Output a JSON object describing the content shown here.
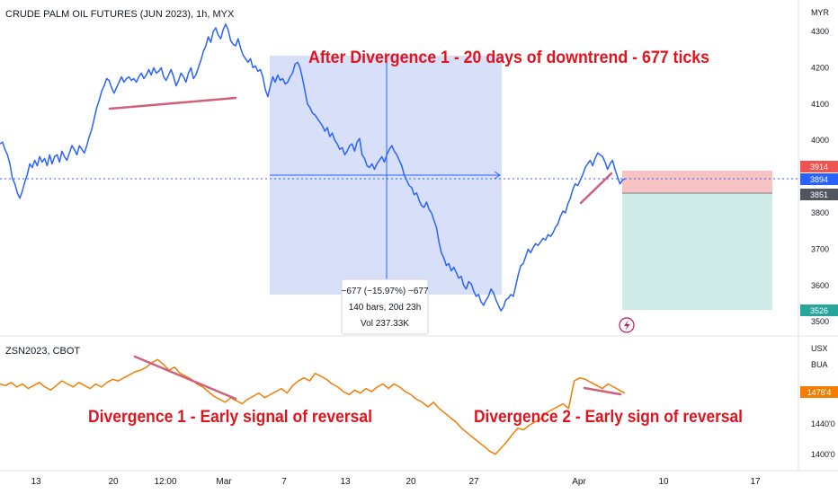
{
  "chart_data": [
    {
      "type": "line",
      "title": "CRUDE PALM OIL FUTURES (JUN 2023), 1h, MYX",
      "currency_label": "MYR",
      "y_ticks": [
        "4300",
        "4200",
        "4100",
        "4000",
        "3800",
        "3700",
        "3600",
        "3500"
      ],
      "ylim": [
        3490,
        4350
      ],
      "price_tags": [
        "3914",
        "3894",
        "3851",
        "3526"
      ],
      "series": [
        {
          "values": [
            3990,
            3995,
            3975,
            3960,
            3935,
            3895,
            3880,
            3855,
            3840,
            3860,
            3885,
            3905,
            3935,
            3925,
            3945,
            3930,
            3955,
            3940,
            3950,
            3930,
            3960,
            3935,
            3955,
            3960,
            3940,
            3970,
            3955,
            3945,
            3965,
            3985,
            3975,
            3960,
            3985,
            3975,
            3965,
            3985,
            4010,
            4030,
            4060,
            4090,
            4110,
            4135,
            4150,
            4170,
            4165,
            4145,
            4130,
            4145,
            4160,
            4175,
            4160,
            4170,
            4175,
            4165,
            4170,
            4160,
            4175,
            4185,
            4170,
            4180,
            4195,
            4180,
            4200,
            4185,
            4190,
            4200,
            4175,
            4165,
            4180,
            4195,
            4175,
            4150,
            4165,
            4185,
            4175,
            4160,
            4185,
            4200,
            4170,
            4180,
            4200,
            4220,
            4245,
            4260,
            4285,
            4270,
            4300,
            4310,
            4290,
            4280,
            4305,
            4320,
            4305,
            4275,
            4265,
            4260,
            4280,
            4255,
            4235,
            4225,
            4215,
            4225,
            4200,
            4205,
            4190,
            4195,
            4175,
            4140,
            4120,
            4150,
            4175,
            4160,
            4180,
            4165,
            4170,
            4155,
            4160,
            4175,
            4185,
            4210,
            4215,
            4200,
            4170,
            4135,
            4100,
            4090,
            4075,
            4070,
            4060,
            4050,
            4040,
            4025,
            4035,
            4010,
            4020,
            4000,
            3990,
            3975,
            3980,
            3960,
            3970,
            3985,
            3990,
            3970,
            3995,
            4005,
            3960,
            3950,
            3930,
            3925,
            3935,
            3920,
            3935,
            3945,
            3955,
            3940,
            3960,
            3975,
            3985,
            3970,
            3960,
            3945,
            3930,
            3905,
            3890,
            3875,
            3870,
            3850,
            3855,
            3835,
            3820,
            3815,
            3830,
            3810,
            3800,
            3780,
            3760,
            3720,
            3690,
            3675,
            3655,
            3660,
            3640,
            3650,
            3635,
            3620,
            3625,
            3600,
            3590,
            3610,
            3605,
            3585,
            3570,
            3575,
            3555,
            3545,
            3560,
            3570,
            3590,
            3580,
            3560,
            3545,
            3530,
            3540,
            3560,
            3565,
            3575,
            3570,
            3600,
            3630,
            3655,
            3660,
            3680,
            3700,
            3690,
            3705,
            3715,
            3710,
            3720,
            3730,
            3725,
            3740,
            3735,
            3745,
            3760,
            3770,
            3790,
            3805,
            3800,
            3825,
            3840,
            3865,
            3880,
            3875,
            3890,
            3905,
            3925,
            3935,
            3945,
            3930,
            3950,
            3965,
            3960,
            3955,
            3940,
            3920,
            3935,
            3945,
            3920,
            3900,
            3880,
            3890,
            3894
          ],
          "color": "#2962ff"
        }
      ],
      "annotations": {
        "heading": "After Divergence 1 - 20 days of downtrend - 677 ticks",
        "measure_line1": "−677 (−15.97%) −677",
        "measure_line2": "140 bars, 20d 23h",
        "measure_line3": "Vol 237.33K"
      }
    },
    {
      "type": "line",
      "title": "ZSN2023, CBOT",
      "currency_label": "USX",
      "unit_label": "BUA",
      "y_ticks": [
        "1440'0",
        "1400'0"
      ],
      "price_tag": "1478'4",
      "series": [
        {
          "values": [
            1490,
            1488,
            1492,
            1486,
            1490,
            1484,
            1488,
            1492,
            1486,
            1482,
            1488,
            1494,
            1490,
            1486,
            1492,
            1488,
            1484,
            1490,
            1486,
            1492,
            1496,
            1494,
            1498,
            1502,
            1506,
            1508,
            1512,
            1518,
            1522,
            1516,
            1508,
            1512,
            1504,
            1500,
            1496,
            1490,
            1486,
            1480,
            1474,
            1470,
            1466,
            1472,
            1468,
            1464,
            1470,
            1474,
            1478,
            1472,
            1476,
            1480,
            1484,
            1478,
            1488,
            1494,
            1498,
            1494,
            1504,
            1500,
            1496,
            1490,
            1486,
            1480,
            1476,
            1482,
            1478,
            1484,
            1480,
            1486,
            1490,
            1484,
            1490,
            1486,
            1480,
            1476,
            1470,
            1466,
            1460,
            1466,
            1458,
            1452,
            1446,
            1440,
            1432,
            1426,
            1420,
            1414,
            1408,
            1402,
            1398,
            1406,
            1414,
            1424,
            1432,
            1430,
            1436,
            1440,
            1444,
            1452,
            1456,
            1460,
            1464,
            1458,
            1494,
            1498,
            1496,
            1492,
            1488,
            1484,
            1490,
            1486,
            1482,
            1478
          ],
          "color": "#f57c00"
        }
      ],
      "annotations": {
        "label_a": "Divergence 1 - Early signal of reversal",
        "label_b": "Divergence 2 - Early sign of reversal"
      }
    }
  ],
  "x_axis": {
    "ticks": [
      "13",
      "20",
      "12:00",
      "Mar",
      "7",
      "13",
      "20",
      "27",
      "Apr",
      "10",
      "17"
    ]
  },
  "colors": {
    "price_line": "#2962ff",
    "lower_line": "#f57c00",
    "annotation_red": "#e0141e",
    "measure_fill": "#c5d3f5",
    "stop_fill": "#f7b8b8",
    "target_fill": "#c7e8e3",
    "divergence_pink": "#d0607a"
  }
}
